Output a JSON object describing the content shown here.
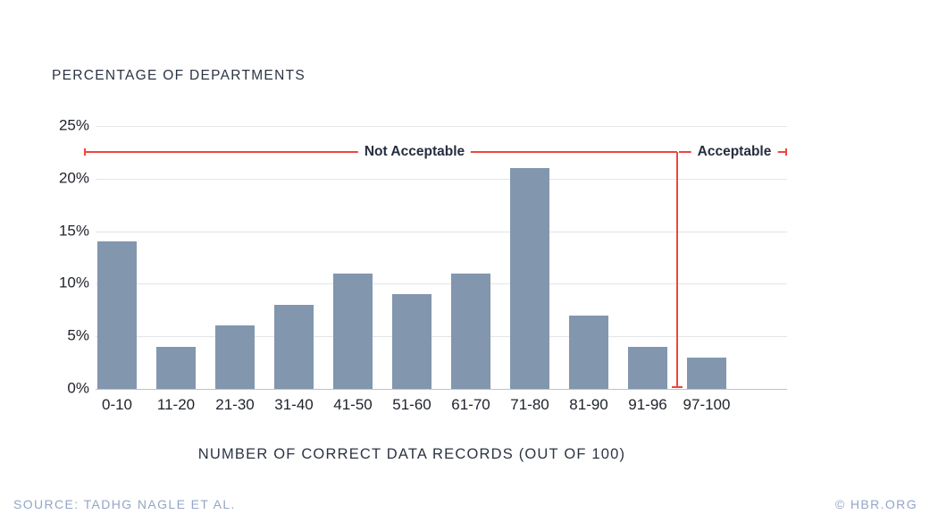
{
  "chart_data": {
    "type": "bar",
    "title": "PERCENTAGE OF DEPARTMENTS",
    "xlabel": "NUMBER OF CORRECT DATA RECORDS (OUT OF 100)",
    "ylabel": "PERCENTAGE OF DEPARTMENTS",
    "categories": [
      "0-10",
      "11-20",
      "21-30",
      "31-40",
      "41-50",
      "51-60",
      "61-70",
      "71-80",
      "81-90",
      "91-96",
      "97-100"
    ],
    "values": [
      14,
      4,
      6,
      8,
      11,
      9,
      11,
      21,
      7,
      4,
      3
    ],
    "ylim": [
      0,
      25
    ],
    "yticks": [
      "25%",
      "20%",
      "15%",
      "10%",
      "5%",
      "0%"
    ],
    "grid": true,
    "legend": "none",
    "bar_color": "#8296ae",
    "annotations": {
      "not_acceptable_label": "Not Acceptable",
      "acceptable_label": "Acceptable",
      "divider_between": [
        "91-96",
        "97-100"
      ],
      "line_value_percent": 22.5,
      "color": "#ef463f"
    }
  },
  "footer": {
    "source": "SOURCE: TADHG NAGLE ET AL.",
    "credit": "© HBR.ORG"
  }
}
